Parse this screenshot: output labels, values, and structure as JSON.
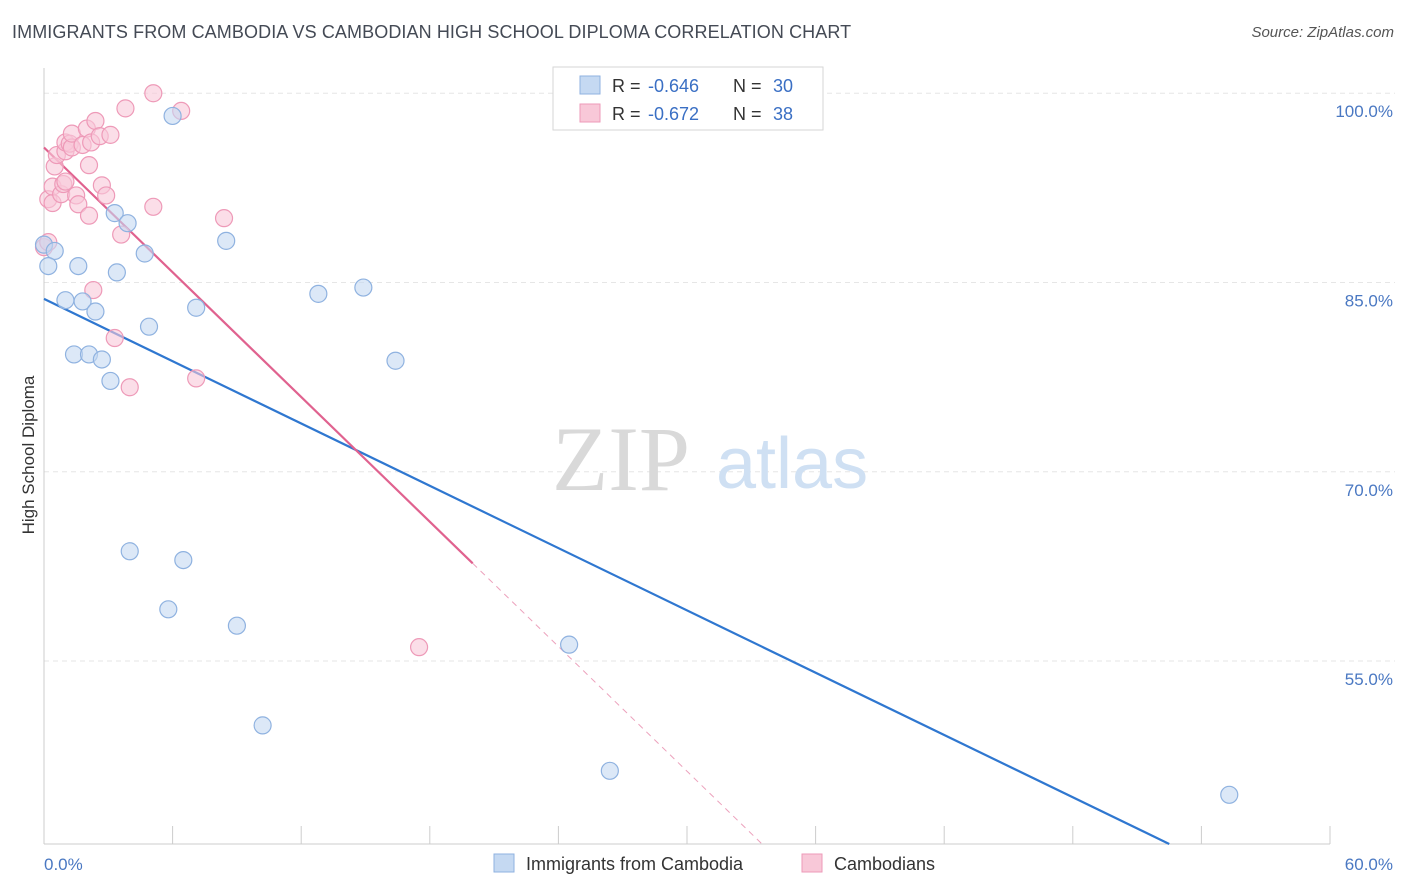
{
  "title": "IMMIGRANTS FROM CAMBODIA VS CAMBODIAN HIGH SCHOOL DIPLOMA CORRELATION CHART",
  "source": "Source: ZipAtlas.com",
  "watermark": {
    "part1": "ZIP",
    "part2": "atlas"
  },
  "colors": {
    "blue_fill": "#c5d9f2",
    "blue_stroke": "#8fb2e0",
    "blue_line": "#2f77d0",
    "pink_fill": "#f8c8d8",
    "pink_stroke": "#ee9ab8",
    "pink_line": "#e0628f",
    "grid": "#e6e6e6",
    "axis_label": "#4a78c2"
  },
  "legend_top": {
    "blue": {
      "r_label": "R =",
      "r_value": "-0.646",
      "n_label": "N =",
      "n_value": "30"
    },
    "pink": {
      "r_label": "R =",
      "r_value": "-0.672",
      "n_label": "N =",
      "n_value": "38"
    }
  },
  "chart_data": {
    "type": "scatter",
    "title": "IMMIGRANTS FROM CAMBODIA VS CAMBODIAN HIGH SCHOOL DIPLOMA CORRELATION CHART",
    "xlabel": "",
    "ylabel": "High School Diploma",
    "xlim": [
      0,
      60
    ],
    "ylim": [
      40.5,
      102
    ],
    "x_tick_labels": [
      "0.0%",
      "60.0%"
    ],
    "y_ticks": [
      55,
      70,
      85,
      100
    ],
    "y_tick_labels": [
      "55.0%",
      "70.0%",
      "85.0%",
      "100.0%"
    ],
    "grid": true,
    "legend_placement": "bottom-center",
    "series": [
      {
        "name": "Immigrants from Cambodia",
        "color": "#2f77d0",
        "r": -0.646,
        "n": 30,
        "trend": {
          "x0": 0,
          "y0": 83.7,
          "x1": 52.5,
          "y1": 40.5,
          "solid_to": 52.5
        },
        "points": [
          {
            "x": 0.0,
            "y": 88.0
          },
          {
            "x": 0.5,
            "y": 87.5
          },
          {
            "x": 0.2,
            "y": 86.3
          },
          {
            "x": 1.6,
            "y": 86.3
          },
          {
            "x": 1.0,
            "y": 83.6
          },
          {
            "x": 1.8,
            "y": 83.5
          },
          {
            "x": 2.4,
            "y": 82.7
          },
          {
            "x": 3.4,
            "y": 85.8
          },
          {
            "x": 3.3,
            "y": 90.5
          },
          {
            "x": 3.9,
            "y": 89.7
          },
          {
            "x": 4.7,
            "y": 87.3
          },
          {
            "x": 4.9,
            "y": 81.5
          },
          {
            "x": 6.0,
            "y": 98.2
          },
          {
            "x": 7.1,
            "y": 83.0
          },
          {
            "x": 8.5,
            "y": 88.3
          },
          {
            "x": 1.4,
            "y": 79.3
          },
          {
            "x": 2.1,
            "y": 79.3
          },
          {
            "x": 2.7,
            "y": 78.9
          },
          {
            "x": 3.1,
            "y": 77.2
          },
          {
            "x": 12.8,
            "y": 84.1
          },
          {
            "x": 14.9,
            "y": 84.6
          },
          {
            "x": 16.4,
            "y": 78.8
          },
          {
            "x": 4.0,
            "y": 63.7
          },
          {
            "x": 6.5,
            "y": 63.0
          },
          {
            "x": 5.8,
            "y": 59.1
          },
          {
            "x": 9.0,
            "y": 57.8
          },
          {
            "x": 24.5,
            "y": 56.3
          },
          {
            "x": 10.2,
            "y": 49.9
          },
          {
            "x": 26.4,
            "y": 46.3
          },
          {
            "x": 55.3,
            "y": 44.4
          }
        ]
      },
      {
        "name": "Cambodians",
        "color": "#e0628f",
        "r": -0.672,
        "n": 38,
        "trend": {
          "x0": 0,
          "y0": 95.7,
          "x1": 33.5,
          "y1": 40.5,
          "solid_to": 20.0
        },
        "points": [
          {
            "x": 0.0,
            "y": 87.8
          },
          {
            "x": 0.2,
            "y": 91.6
          },
          {
            "x": 0.4,
            "y": 91.3
          },
          {
            "x": 0.4,
            "y": 92.6
          },
          {
            "x": 0.5,
            "y": 94.2
          },
          {
            "x": 0.6,
            "y": 95.1
          },
          {
            "x": 0.8,
            "y": 92.0
          },
          {
            "x": 0.9,
            "y": 92.8
          },
          {
            "x": 1.0,
            "y": 95.4
          },
          {
            "x": 1.0,
            "y": 96.1
          },
          {
            "x": 1.2,
            "y": 96.0
          },
          {
            "x": 1.3,
            "y": 95.7
          },
          {
            "x": 1.3,
            "y": 96.8
          },
          {
            "x": 1.5,
            "y": 91.9
          },
          {
            "x": 1.6,
            "y": 91.2
          },
          {
            "x": 1.8,
            "y": 95.9
          },
          {
            "x": 2.0,
            "y": 97.2
          },
          {
            "x": 2.1,
            "y": 94.3
          },
          {
            "x": 2.1,
            "y": 90.3
          },
          {
            "x": 2.2,
            "y": 96.1
          },
          {
            "x": 2.3,
            "y": 84.4
          },
          {
            "x": 2.4,
            "y": 97.8
          },
          {
            "x": 2.6,
            "y": 96.6
          },
          {
            "x": 2.7,
            "y": 92.7
          },
          {
            "x": 2.9,
            "y": 91.9
          },
          {
            "x": 3.1,
            "y": 96.7
          },
          {
            "x": 3.3,
            "y": 80.6
          },
          {
            "x": 3.6,
            "y": 88.8
          },
          {
            "x": 3.8,
            "y": 98.8
          },
          {
            "x": 4.0,
            "y": 76.7
          },
          {
            "x": 5.1,
            "y": 91.0
          },
          {
            "x": 5.1,
            "y": 100.0
          },
          {
            "x": 6.4,
            "y": 98.6
          },
          {
            "x": 7.1,
            "y": 77.4
          },
          {
            "x": 8.4,
            "y": 90.1
          },
          {
            "x": 17.5,
            "y": 56.1
          },
          {
            "x": 1.0,
            "y": 93.0
          },
          {
            "x": 0.2,
            "y": 88.2
          }
        ]
      }
    ]
  }
}
